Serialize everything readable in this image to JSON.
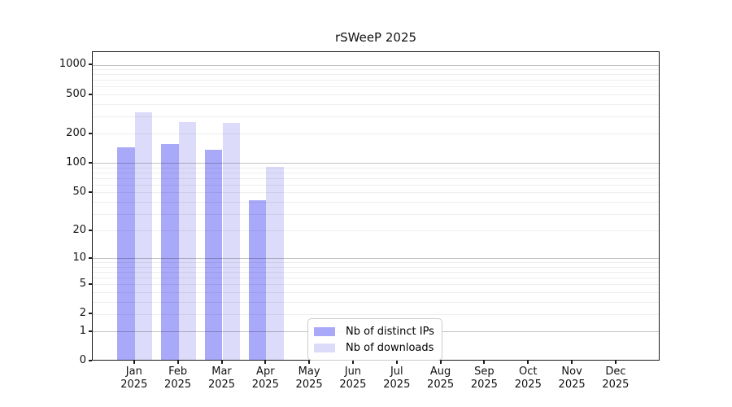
{
  "chart_data": {
    "type": "bar",
    "title": "rSWeeP 2025",
    "categories": [
      "Jan",
      "Feb",
      "Mar",
      "Apr",
      "May",
      "Jun",
      "Jul",
      "Aug",
      "Sep",
      "Oct",
      "Nov",
      "Dec"
    ],
    "category_year": "2025",
    "series": [
      {
        "name": "Nb of distinct IPs",
        "color": "#a9a9fa",
        "values": [
          140,
          152,
          134,
          40,
          0,
          0,
          0,
          0,
          0,
          0,
          0,
          0
        ]
      },
      {
        "name": "Nb of downloads",
        "color": "#dcdcfa",
        "values": [
          320,
          254,
          250,
          89,
          0,
          0,
          0,
          0,
          0,
          0,
          0,
          0
        ]
      }
    ],
    "y_ticks": [
      0,
      1,
      2,
      5,
      10,
      20,
      50,
      100,
      200,
      500,
      1000
    ],
    "y_minor_gridlines": [
      2,
      3,
      4,
      5,
      6,
      7,
      8,
      9,
      20,
      30,
      40,
      50,
      60,
      70,
      80,
      90,
      200,
      300,
      400,
      500,
      600,
      700,
      800,
      900
    ],
    "y_major_gridlines": [
      1,
      10,
      100,
      1000
    ],
    "y_scale": "log10(1+y)",
    "ylim": [
      0,
      1330
    ],
    "xlabel": "",
    "ylabel": "",
    "grid": "horizontal",
    "legend_position": "bottom-center"
  },
  "colors": {
    "background": "#ffffff",
    "spine": "#1a1a1a",
    "text": "#111111"
  }
}
